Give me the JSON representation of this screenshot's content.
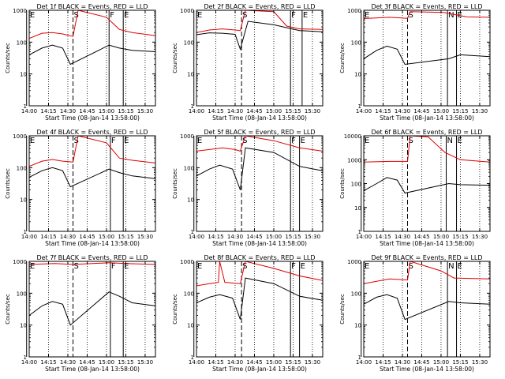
{
  "colors": {
    "events": "#000000",
    "lld": "#e00000",
    "axis": "#000000",
    "background": "#ffffff"
  },
  "chart_data": [
    {
      "type": "line",
      "title": "Det 1f BLACK = Events, RED = LLD",
      "xlabel": "Start Time (08-Jan-14 13:58:00)",
      "ylabel": "Counts/sec",
      "xlim": [
        "14:00",
        "15:38"
      ],
      "ylim": [
        1,
        1000
      ],
      "yscale": "log",
      "grid": false,
      "xticks": [
        "14:00",
        "14:15",
        "14:30",
        "14:45",
        "15:00",
        "15:15",
        "15:30"
      ],
      "yticks": [
        "1",
        "10",
        "100",
        "1000"
      ],
      "markers": [
        {
          "time": "13:58",
          "label": "E"
        },
        {
          "time": "14:34",
          "label": "S"
        },
        {
          "time": "15:02",
          "label": "F"
        },
        {
          "time": "15:13",
          "label": "E"
        }
      ],
      "series": [
        {
          "role": "events",
          "x": [
            "14:00",
            "14:10",
            "14:18",
            "14:26",
            "14:32",
            "15:02",
            "15:10",
            "15:20",
            "15:38"
          ],
          "y": [
            40,
            65,
            80,
            65,
            20,
            80,
            65,
            55,
            50
          ]
        },
        {
          "role": "lld",
          "x": [
            "14:00",
            "14:10",
            "14:18",
            "14:26",
            "14:34",
            "14:38",
            "15:00",
            "15:10",
            "15:20",
            "15:38"
          ],
          "y": [
            130,
            190,
            200,
            180,
            150,
            1000,
            600,
            250,
            200,
            160
          ]
        }
      ]
    },
    {
      "type": "line",
      "title": "Det 2f BLACK = Events, RED = LLD",
      "xlabel": "Start Time (08-Jan-14 13:58:00)",
      "ylabel": "Counts/sec",
      "xlim": [
        "14:00",
        "15:38"
      ],
      "ylim": [
        1,
        1000
      ],
      "yscale": "log",
      "grid": false,
      "xticks": [
        "14:00",
        "14:15",
        "14:30",
        "14:45",
        "15:00",
        "15:15",
        "15:30"
      ],
      "yticks": [
        "1",
        "10",
        "100",
        "1000"
      ],
      "markers": [
        {
          "time": "13:58",
          "label": "E"
        },
        {
          "time": "14:35",
          "label": "S"
        },
        {
          "time": "15:13",
          "label": "F"
        },
        {
          "time": "15:22",
          "label": "E"
        }
      ],
      "series": [
        {
          "role": "events",
          "x": [
            "14:00",
            "14:10",
            "14:20",
            "14:30",
            "14:34",
            "14:40",
            "15:00",
            "15:20",
            "15:38"
          ],
          "y": [
            170,
            195,
            190,
            175,
            60,
            450,
            350,
            230,
            210
          ]
        },
        {
          "role": "lld",
          "x": [
            "14:00",
            "14:10",
            "14:20",
            "14:30",
            "14:34",
            "14:38",
            "15:00",
            "15:10",
            "15:20",
            "15:38"
          ],
          "y": [
            200,
            240,
            260,
            240,
            230,
            1000,
            900,
            320,
            260,
            250
          ]
        }
      ]
    },
    {
      "type": "line",
      "title": "Det 3f BLACK = Events, RED = LLD",
      "xlabel": "Start Time (08-Jan-14 13:58:00)",
      "ylabel": "Counts/sec",
      "xlim": [
        "14:00",
        "15:38"
      ],
      "ylim": [
        1,
        1000
      ],
      "yscale": "log",
      "grid": false,
      "xticks": [
        "14:00",
        "14:15",
        "14:30",
        "14:45",
        "15:00",
        "15:15",
        "15:30"
      ],
      "yticks": [
        "1",
        "10",
        "100",
        "1000"
      ],
      "markers": [
        {
          "time": "13:58",
          "label": "E"
        },
        {
          "time": "14:34",
          "label": "S"
        },
        {
          "time": "15:05",
          "label": "N"
        },
        {
          "time": "15:12",
          "label": "E"
        }
      ],
      "series": [
        {
          "role": "events",
          "x": [
            "14:00",
            "14:10",
            "14:18",
            "14:26",
            "14:32",
            "15:06",
            "15:15",
            "15:38"
          ],
          "y": [
            30,
            55,
            75,
            60,
            20,
            30,
            40,
            35
          ]
        },
        {
          "role": "lld",
          "x": [
            "14:00",
            "14:20",
            "14:34",
            "14:36",
            "15:02",
            "15:20",
            "15:38"
          ],
          "y": [
            550,
            600,
            560,
            900,
            850,
            620,
            600
          ]
        }
      ]
    },
    {
      "type": "line",
      "title": "Det 4f BLACK = Events, RED = LLD",
      "xlabel": "Start Time (08-Jan-14 13:58:00)",
      "ylabel": "Counts/sec",
      "xlim": [
        "14:00",
        "15:38"
      ],
      "ylim": [
        1,
        1000
      ],
      "yscale": "log",
      "grid": false,
      "xticks": [
        "14:00",
        "14:15",
        "14:30",
        "14:45",
        "15:00",
        "15:15",
        "15:30"
      ],
      "yticks": [
        "1",
        "10",
        "100",
        "1000"
      ],
      "markers": [
        {
          "time": "13:58",
          "label": "E"
        },
        {
          "time": "14:34",
          "label": "S"
        },
        {
          "time": "15:03",
          "label": "F"
        },
        {
          "time": "15:13",
          "label": "E"
        }
      ],
      "series": [
        {
          "role": "events",
          "x": [
            "14:00",
            "14:10",
            "14:18",
            "14:26",
            "14:32",
            "15:02",
            "15:10",
            "15:20",
            "15:38"
          ],
          "y": [
            50,
            80,
            100,
            80,
            25,
            90,
            70,
            55,
            45
          ]
        },
        {
          "role": "lld",
          "x": [
            "14:00",
            "14:10",
            "14:18",
            "14:26",
            "14:34",
            "14:38",
            "15:00",
            "15:10",
            "15:20",
            "15:38"
          ],
          "y": [
            110,
            160,
            180,
            160,
            150,
            1000,
            600,
            200,
            170,
            140
          ]
        }
      ]
    },
    {
      "type": "line",
      "title": "Det 5f BLACK = Events, RED = LLD",
      "xlabel": "Start Time (08-Jan-14 13:58:00)",
      "ylabel": "Counts/sec",
      "xlim": [
        "14:00",
        "15:38"
      ],
      "ylim": [
        1,
        1000
      ],
      "yscale": "log",
      "grid": false,
      "xticks": [
        "14:00",
        "14:15",
        "14:30",
        "14:45",
        "15:00",
        "15:15",
        "15:30"
      ],
      "yticks": [
        "1",
        "10",
        "100",
        "1000"
      ],
      "markers": [
        {
          "time": "13:58",
          "label": "E"
        },
        {
          "time": "14:35",
          "label": "S"
        },
        {
          "time": "15:13",
          "label": "F"
        },
        {
          "time": "15:20",
          "label": "E"
        }
      ],
      "series": [
        {
          "role": "events",
          "x": [
            "14:00",
            "14:10",
            "14:18",
            "14:28",
            "14:34",
            "14:38",
            "15:00",
            "15:20",
            "15:38"
          ],
          "y": [
            55,
            90,
            120,
            90,
            20,
            420,
            300,
            110,
            80
          ]
        },
        {
          "role": "lld",
          "x": [
            "14:00",
            "14:10",
            "14:20",
            "14:30",
            "14:34",
            "14:38",
            "15:00",
            "15:20",
            "15:38"
          ],
          "y": [
            330,
            370,
            420,
            370,
            330,
            1000,
            700,
            420,
            330
          ]
        }
      ]
    },
    {
      "type": "line",
      "title": "Det 6f BLACK = Events, RED = LLD",
      "xlabel": "Start Time (08-Jan-14 13:58:00)",
      "ylabel": "Counts/sec",
      "xlim": [
        "14:00",
        "15:38"
      ],
      "ylim": [
        1,
        10000
      ],
      "yscale": "log",
      "grid": false,
      "xticks": [
        "14:00",
        "14:15",
        "14:30",
        "14:45",
        "15:00",
        "15:15",
        "15:30"
      ],
      "yticks": [
        "1",
        "10",
        "100",
        "1000",
        "10000"
      ],
      "markers": [
        {
          "time": "13:58",
          "label": "E"
        },
        {
          "time": "14:34",
          "label": "S"
        },
        {
          "time": "15:04",
          "label": "N"
        },
        {
          "time": "15:12",
          "label": "E"
        }
      ],
      "series": [
        {
          "role": "events",
          "x": [
            "14:00",
            "14:10",
            "14:18",
            "14:26",
            "14:32",
            "15:06",
            "15:15",
            "15:38"
          ],
          "y": [
            50,
            100,
            180,
            140,
            40,
            100,
            90,
            85
          ]
        },
        {
          "role": "lld",
          "x": [
            "14:00",
            "14:20",
            "14:34",
            "14:36",
            "14:50",
            "15:03",
            "15:15",
            "15:38"
          ],
          "y": [
            800,
            850,
            850,
            10000,
            9000,
            2000,
            1000,
            800
          ]
        }
      ]
    },
    {
      "type": "line",
      "title": "Det 7f BLACK = Events, RED = LLD",
      "xlabel": "Start Time (08-Jan-14 13:58:00)",
      "ylabel": "Counts/sec",
      "xlim": [
        "14:00",
        "15:38"
      ],
      "ylim": [
        1,
        1000
      ],
      "yscale": "log",
      "grid": false,
      "xticks": [
        "14:00",
        "14:15",
        "14:30",
        "14:45",
        "15:00",
        "15:15",
        "15:30"
      ],
      "yticks": [
        "1",
        "10",
        "100",
        "1000"
      ],
      "markers": [
        {
          "time": "13:58",
          "label": "E"
        },
        {
          "time": "14:34",
          "label": "S"
        },
        {
          "time": "15:03",
          "label": "F"
        },
        {
          "time": "15:13",
          "label": "E"
        }
      ],
      "series": [
        {
          "role": "events",
          "x": [
            "14:00",
            "14:10",
            "14:18",
            "14:26",
            "14:32",
            "15:02",
            "15:10",
            "15:20",
            "15:38"
          ],
          "y": [
            20,
            40,
            55,
            45,
            10,
            110,
            80,
            50,
            40
          ]
        },
        {
          "role": "lld",
          "x": [
            "14:00",
            "14:20",
            "14:34",
            "15:02",
            "15:15",
            "15:38"
          ],
          "y": [
            800,
            850,
            800,
            900,
            850,
            800
          ]
        }
      ]
    },
    {
      "type": "line",
      "title": "Det 8f BLACK = Events, RED = LLD",
      "xlabel": "Start Time (08-Jan-14 13:58:00)",
      "ylabel": "Counts/sec",
      "xlim": [
        "14:00",
        "15:38"
      ],
      "ylim": [
        1,
        1000
      ],
      "yscale": "log",
      "grid": false,
      "xticks": [
        "14:00",
        "14:15",
        "14:30",
        "14:45",
        "15:00",
        "15:15",
        "15:30"
      ],
      "yticks": [
        "1",
        "10",
        "100",
        "1000"
      ],
      "markers": [
        {
          "time": "13:58",
          "label": "E"
        },
        {
          "time": "14:35",
          "label": "S"
        },
        {
          "time": "15:13",
          "label": "F"
        },
        {
          "time": "15:20",
          "label": "E"
        }
      ],
      "series": [
        {
          "role": "events",
          "x": [
            "14:00",
            "14:10",
            "14:18",
            "14:28",
            "14:34",
            "14:38",
            "15:00",
            "15:20",
            "15:38"
          ],
          "y": [
            50,
            75,
            90,
            70,
            15,
            300,
            200,
            80,
            60
          ]
        },
        {
          "role": "lld",
          "x": [
            "14:00",
            "14:10",
            "14:17",
            "14:18",
            "14:22",
            "14:34",
            "14:38",
            "15:00",
            "15:20",
            "15:38"
          ],
          "y": [
            170,
            200,
            220,
            1000,
            220,
            200,
            1000,
            600,
            350,
            250
          ]
        }
      ]
    },
    {
      "type": "line",
      "title": "Det 9f BLACK = Events, RED = LLD",
      "xlabel": "Start Time (08-Jan-14 13:58:00)",
      "ylabel": "Counts/sec",
      "xlim": [
        "14:00",
        "15:38"
      ],
      "ylim": [
        1,
        1000
      ],
      "yscale": "log",
      "grid": false,
      "xticks": [
        "14:00",
        "14:15",
        "14:30",
        "14:45",
        "15:00",
        "15:15",
        "15:30"
      ],
      "yticks": [
        "1",
        "10",
        "100",
        "1000"
      ],
      "markers": [
        {
          "time": "13:58",
          "label": "E"
        },
        {
          "time": "14:34",
          "label": "S"
        },
        {
          "time": "15:05",
          "label": "N"
        },
        {
          "time": "15:12",
          "label": "E"
        }
      ],
      "series": [
        {
          "role": "events",
          "x": [
            "14:00",
            "14:10",
            "14:18",
            "14:26",
            "14:32",
            "15:06",
            "15:15",
            "15:38"
          ],
          "y": [
            45,
            75,
            90,
            70,
            15,
            55,
            50,
            45
          ]
        },
        {
          "role": "lld",
          "x": [
            "14:00",
            "14:20",
            "14:34",
            "14:36",
            "15:00",
            "15:10",
            "15:38"
          ],
          "y": [
            200,
            280,
            260,
            1000,
            500,
            300,
            280
          ]
        }
      ]
    }
  ]
}
